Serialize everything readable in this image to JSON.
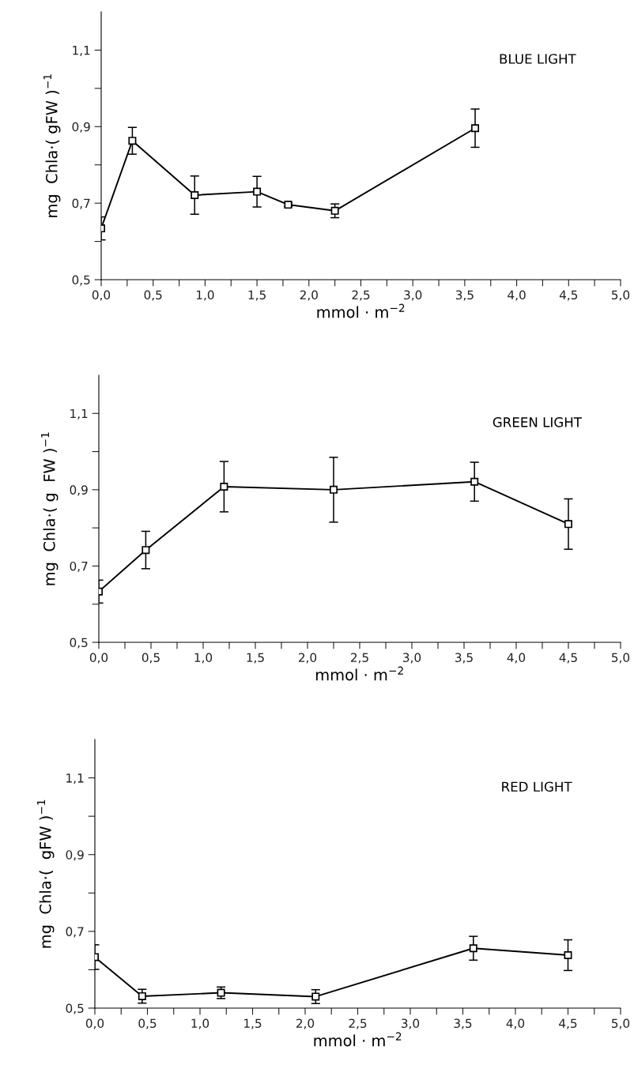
{
  "chart_data": [
    {
      "type": "line",
      "xlabel": "mmol · m$^{−2}$",
      "ylabel": "mg  Chla·( gFW )$^{−1}$",
      "annotations": [
        "BLUE LIGHT"
      ],
      "x": [
        0,
        0.3,
        0.9,
        1.5,
        1.8,
        2.25,
        3.6
      ],
      "series": [
        {
          "color": "#000000",
          "values": [
            0.634,
            0.863,
            0.721,
            0.73,
            0.696,
            0.68,
            0.896
          ],
          "errors": [
            0.03,
            0.035,
            0.05,
            0.04,
            0.005,
            0.018,
            0.05
          ]
        }
      ],
      "xlim": [
        0,
        5
      ],
      "ylim": [
        0.5,
        1.2
      ],
      "xticks": [
        {
          "value": 0,
          "label": "0,0"
        },
        {
          "value": 0.25,
          "label": null
        },
        {
          "value": 0.5,
          "label": "0,5"
        },
        {
          "value": 0.75,
          "label": null
        },
        {
          "value": 1,
          "label": "1,0"
        },
        {
          "value": 1.25,
          "label": null
        },
        {
          "value": 1.5,
          "label": "1,5"
        },
        {
          "value": 1.75,
          "label": null
        },
        {
          "value": 2,
          "label": "2,0"
        },
        {
          "value": 2.25,
          "label": null
        },
        {
          "value": 2.5,
          "label": "2,5"
        },
        {
          "value": 2.75,
          "label": null
        },
        {
          "value": 3,
          "label": "3,0"
        },
        {
          "value": 3.25,
          "label": null
        },
        {
          "value": 3.5,
          "label": "3,5"
        },
        {
          "value": 3.75,
          "label": null
        },
        {
          "value": 4,
          "label": "4,0"
        },
        {
          "value": 4.25,
          "label": null
        },
        {
          "value": 4.5,
          "label": "4,5"
        },
        {
          "value": 4.75,
          "label": null
        },
        {
          "value": 5,
          "label": "5,0"
        }
      ],
      "yticks": [
        {
          "value": 0.5,
          "label": "0,5"
        },
        {
          "value": 0.6,
          "label": null
        },
        {
          "value": 0.7,
          "label": "0,7"
        },
        {
          "value": 0.8,
          "label": null
        },
        {
          "value": 0.9,
          "label": "0,9"
        },
        {
          "value": 1.0,
          "label": null
        },
        {
          "value": 1.1,
          "label": "1,1"
        }
      ],
      "marker": "square",
      "line_style": "solid",
      "grid": false,
      "legend": false
    },
    {
      "type": "line",
      "xlabel": "mmol · m$^{−2}$",
      "ylabel": "mg  Chla·( g  FW )$^{−1}$",
      "annotations": [
        "GREEN LIGHT"
      ],
      "x": [
        0,
        0.45,
        1.2,
        2.25,
        3.6,
        4.5
      ],
      "series": [
        {
          "color": "#000000",
          "values": [
            0.633,
            0.742,
            0.908,
            0.9,
            0.921,
            0.81
          ],
          "errors": [
            0.03,
            0.049,
            0.066,
            0.085,
            0.051,
            0.066
          ]
        }
      ],
      "xlim": [
        0,
        5
      ],
      "ylim": [
        0.5,
        1.2
      ],
      "xticks": [
        {
          "value": 0,
          "label": "0,0"
        },
        {
          "value": 0.25,
          "label": null
        },
        {
          "value": 0.5,
          "label": "0,5"
        },
        {
          "value": 0.75,
          "label": null
        },
        {
          "value": 1,
          "label": "1,0"
        },
        {
          "value": 1.25,
          "label": null
        },
        {
          "value": 1.5,
          "label": "1,5"
        },
        {
          "value": 1.75,
          "label": null
        },
        {
          "value": 2,
          "label": "2,0"
        },
        {
          "value": 2.25,
          "label": null
        },
        {
          "value": 2.5,
          "label": "2,5"
        },
        {
          "value": 2.75,
          "label": null
        },
        {
          "value": 3,
          "label": "3,0"
        },
        {
          "value": 3.25,
          "label": null
        },
        {
          "value": 3.5,
          "label": "3,5"
        },
        {
          "value": 3.75,
          "label": null
        },
        {
          "value": 4,
          "label": "4,0"
        },
        {
          "value": 4.25,
          "label": null
        },
        {
          "value": 4.5,
          "label": "4,5"
        },
        {
          "value": 4.75,
          "label": null
        },
        {
          "value": 5,
          "label": "5,0"
        }
      ],
      "yticks": [
        {
          "value": 0.5,
          "label": "0,5"
        },
        {
          "value": 0.6,
          "label": null
        },
        {
          "value": 0.7,
          "label": "0,7"
        },
        {
          "value": 0.8,
          "label": null
        },
        {
          "value": 0.9,
          "label": "0,9"
        },
        {
          "value": 1.0,
          "label": null
        },
        {
          "value": 1.1,
          "label": "1,1"
        }
      ],
      "marker": "square",
      "line_style": "solid",
      "grid": false,
      "legend": false
    },
    {
      "type": "line",
      "xlabel": "mmol · m$^{−2}$",
      "ylabel": "mg  Chla·(  gFW )$^{−1}$",
      "annotations": [
        "RED LIGHT"
      ],
      "x": [
        0,
        0.45,
        1.2,
        2.1,
        3.6,
        4.5
      ],
      "series": [
        {
          "color": "#000000",
          "values": [
            0.633,
            0.531,
            0.54,
            0.53,
            0.656,
            0.638
          ],
          "errors": [
            0.032,
            0.018,
            0.015,
            0.018,
            0.031,
            0.04
          ]
        }
      ],
      "xlim": [
        0,
        5
      ],
      "ylim": [
        0.5,
        1.2
      ],
      "xticks": [
        {
          "value": 0,
          "label": "0,0"
        },
        {
          "value": 0.25,
          "label": null
        },
        {
          "value": 0.5,
          "label": "0,5"
        },
        {
          "value": 0.75,
          "label": null
        },
        {
          "value": 1,
          "label": "1,0"
        },
        {
          "value": 1.25,
          "label": null
        },
        {
          "value": 1.5,
          "label": "1,5"
        },
        {
          "value": 1.75,
          "label": null
        },
        {
          "value": 2,
          "label": "2,0"
        },
        {
          "value": 2.25,
          "label": null
        },
        {
          "value": 2.5,
          "label": "2,5"
        },
        {
          "value": 2.75,
          "label": null
        },
        {
          "value": 3,
          "label": "3,0"
        },
        {
          "value": 3.25,
          "label": null
        },
        {
          "value": 3.5,
          "label": "3,5"
        },
        {
          "value": 3.75,
          "label": null
        },
        {
          "value": 4,
          "label": "4,0"
        },
        {
          "value": 4.25,
          "label": null
        },
        {
          "value": 4.5,
          "label": "4,5"
        },
        {
          "value": 4.75,
          "label": null
        },
        {
          "value": 5,
          "label": "5,0"
        }
      ],
      "yticks": [
        {
          "value": 0.5,
          "label": "0,5"
        },
        {
          "value": 0.6,
          "label": null
        },
        {
          "value": 0.7,
          "label": "0,7"
        },
        {
          "value": 0.8,
          "label": null
        },
        {
          "value": 0.9,
          "label": "0,9"
        },
        {
          "value": 1.0,
          "label": null
        },
        {
          "value": 1.1,
          "label": "1,1"
        }
      ],
      "marker": "square",
      "line_style": "solid",
      "grid": false,
      "legend": false
    }
  ]
}
